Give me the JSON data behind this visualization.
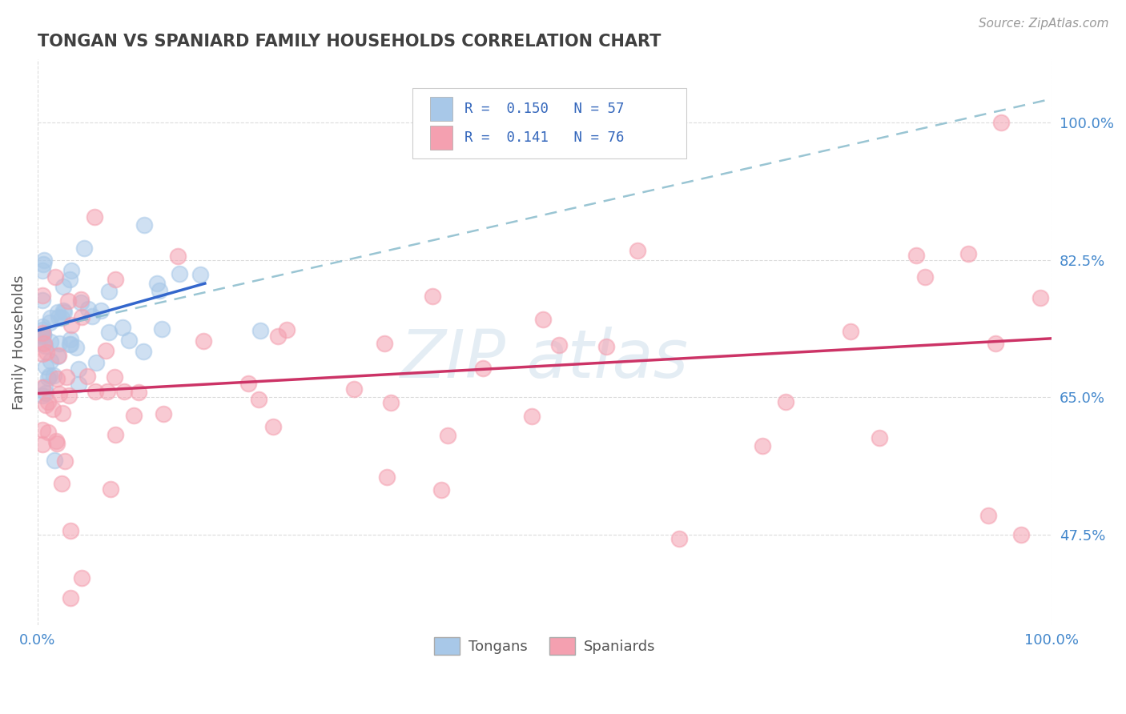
{
  "title": "TONGAN VS SPANIARD FAMILY HOUSEHOLDS CORRELATION CHART",
  "source_text": "Source: ZipAtlas.com",
  "ylabel": "Family Households",
  "xlim": [
    0.0,
    1.0
  ],
  "ylim": [
    0.36,
    1.08
  ],
  "ytick_positions": [
    0.475,
    0.65,
    0.825,
    1.0
  ],
  "ytick_labels": [
    "47.5%",
    "65.0%",
    "82.5%",
    "100.0%"
  ],
  "xtick_positions": [
    0.0,
    1.0
  ],
  "xtick_labels": [
    "0.0%",
    "100.0%"
  ],
  "legend_label1": "Tongans",
  "legend_label2": "Spaniards",
  "tongan_color": "#a8c8e8",
  "spaniard_color": "#f4a0b0",
  "tongan_line_color": "#3366cc",
  "spaniard_line_color": "#cc3366",
  "dashed_line_color": "#88bbcc",
  "background_color": "#ffffff",
  "grid_color": "#cccccc",
  "title_color": "#404040",
  "tick_color": "#4488cc",
  "tongan_line_x": [
    0.0,
    0.165
  ],
  "tongan_line_y": [
    0.735,
    0.795
  ],
  "spaniard_line_x": [
    0.0,
    1.0
  ],
  "spaniard_line_y": [
    0.655,
    0.725
  ],
  "dashed_line_x": [
    0.0,
    1.0
  ],
  "dashed_line_y": [
    0.735,
    1.03
  ]
}
